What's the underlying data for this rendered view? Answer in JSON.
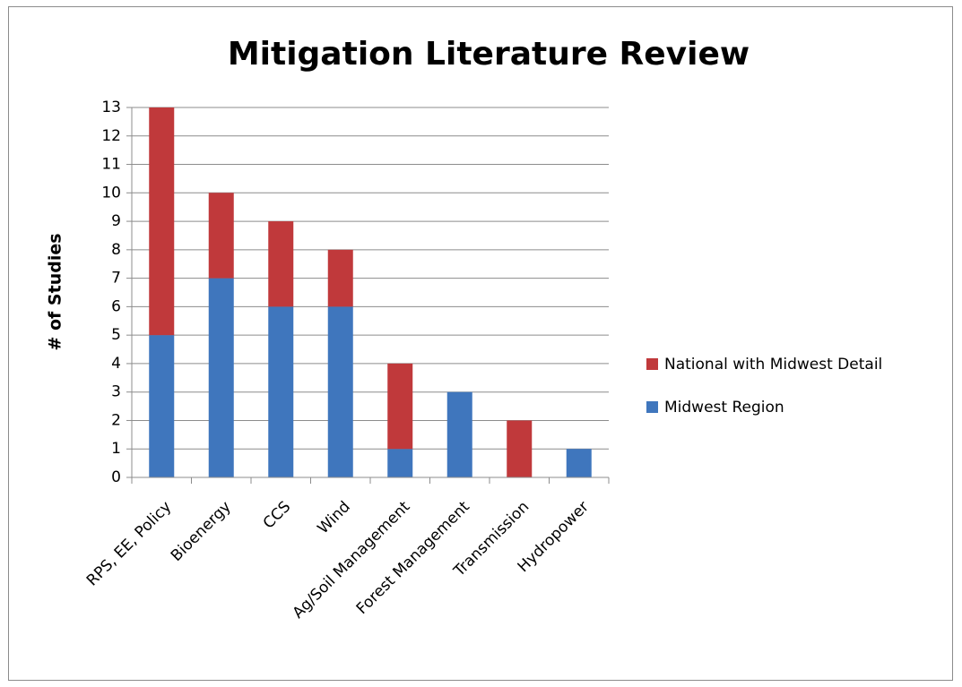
{
  "chart_data": {
    "type": "stacked_bar",
    "title": "Mitigation Literature Review",
    "y_label": "# of Studies",
    "categories": [
      "RPS, EE, Policy",
      "Bioenergy",
      "CCS",
      "Wind",
      "Ag/Soil Management",
      "Forest Management",
      "Transmission",
      "Hydropower"
    ],
    "series": [
      {
        "name": "Midwest Region",
        "color": "#3f76bd",
        "values": [
          5,
          7,
          6,
          6,
          1,
          3,
          0,
          1
        ]
      },
      {
        "name": "National with Midwest Detail",
        "color": "#c0393b",
        "values": [
          8,
          3,
          3,
          2,
          3,
          0,
          2,
          0
        ]
      }
    ],
    "ylim": [
      0,
      13
    ],
    "yticks": [
      0,
      1,
      2,
      3,
      4,
      5,
      6,
      7,
      8,
      9,
      10,
      11,
      12,
      13
    ],
    "grid": true,
    "legend": "right"
  }
}
